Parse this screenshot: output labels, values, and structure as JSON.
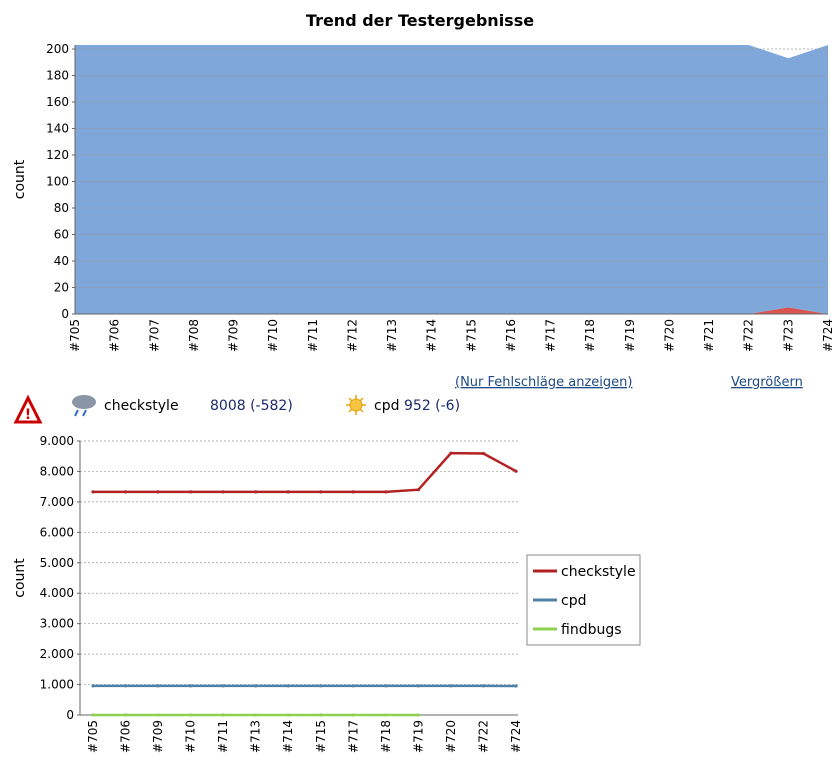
{
  "chart_data": [
    {
      "type": "area",
      "title": "Trend der Testergebnisse",
      "ylabel": "count",
      "categories": [
        "#705",
        "#706",
        "#707",
        "#708",
        "#709",
        "#710",
        "#711",
        "#712",
        "#713",
        "#714",
        "#715",
        "#716",
        "#717",
        "#718",
        "#719",
        "#720",
        "#721",
        "#722",
        "#723",
        "#724"
      ],
      "series": [
        {
          "color": "#d9534f",
          "values": [
            0,
            0,
            0,
            0,
            0,
            0,
            0,
            0,
            0,
            0,
            0,
            0,
            0,
            0,
            0,
            0,
            0,
            0,
            5,
            0
          ]
        },
        {
          "color": "#7fa7d9",
          "values": [
            203,
            203,
            203,
            203,
            203,
            203,
            203,
            203,
            203,
            203,
            203,
            203,
            203,
            203,
            203,
            203,
            203,
            203,
            188,
            203
          ]
        }
      ],
      "ylim": [
        0,
        203
      ],
      "yticks": [
        0,
        20,
        40,
        60,
        80,
        100,
        120,
        140,
        160,
        180,
        200
      ],
      "grid": true
    },
    {
      "type": "line",
      "ylabel": "count",
      "categories": [
        "#705",
        "#706",
        "#709",
        "#710",
        "#711",
        "#713",
        "#714",
        "#715",
        "#717",
        "#718",
        "#719",
        "#720",
        "#722",
        "#724"
      ],
      "series": [
        {
          "name": "checkstyle",
          "color": "#b22222",
          "values": [
            7330,
            7330,
            7330,
            7330,
            7330,
            7330,
            7330,
            7330,
            7330,
            7330,
            7400,
            8600,
            8590,
            8008
          ]
        },
        {
          "name": "cpd",
          "color": "#4f81a8",
          "values": [
            958,
            958,
            958,
            958,
            958,
            958,
            958,
            958,
            958,
            958,
            958,
            958,
            958,
            952
          ]
        },
        {
          "name": "findbugs",
          "color": "#8fd14f",
          "values": [
            0,
            0,
            0,
            0,
            0,
            0,
            0,
            0,
            0,
            0,
            0,
            null,
            null,
            null
          ]
        }
      ],
      "ylim": [
        0,
        9000
      ],
      "yticks": [
        0,
        {
          "value": 1000,
          "label": "1.000"
        },
        {
          "value": 2000,
          "label": "2.000"
        },
        {
          "value": 3000,
          "label": "3.000"
        },
        {
          "value": 4000,
          "label": "4.000"
        },
        {
          "value": 5000,
          "label": "5.000"
        },
        {
          "value": 6000,
          "label": "6.000"
        },
        {
          "value": 7000,
          "label": "7.000"
        },
        {
          "value": 8000,
          "label": "8.000"
        },
        {
          "value": 9000,
          "label": "9.000"
        }
      ],
      "grid": true,
      "legend": "right"
    }
  ],
  "links": {
    "failures": "(Nur Fehlschläge anzeigen)",
    "enlarge": "Vergrößern"
  },
  "status": [
    {
      "name": "checkstyle",
      "value": "8008 (-582)"
    },
    {
      "name": "cpd",
      "value": "952 (-6)"
    }
  ]
}
